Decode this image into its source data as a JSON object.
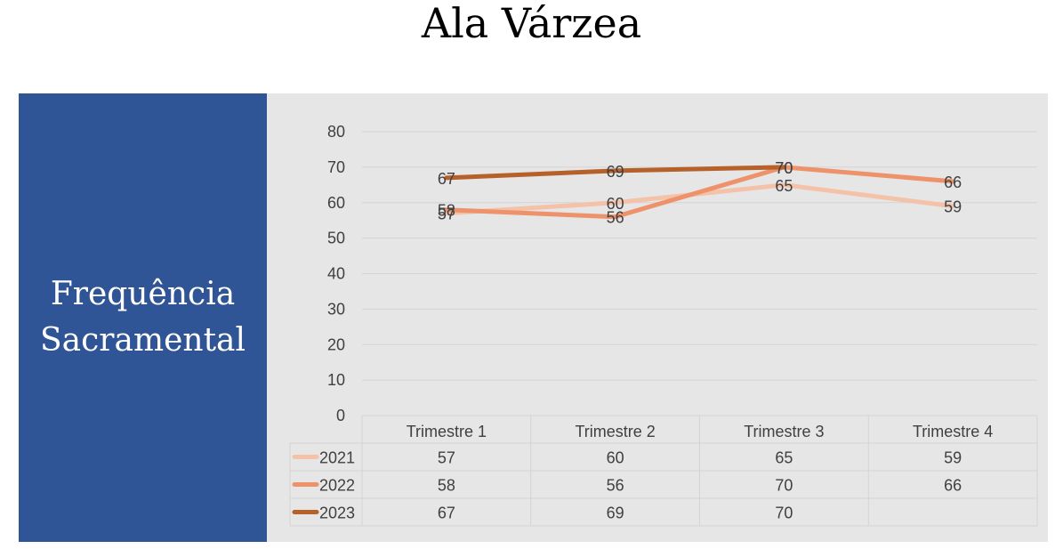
{
  "page": {
    "title": "Ala Várzea",
    "side_title": "Frequência Sacramental"
  },
  "colors": {
    "side_panel": "#2f5597",
    "chart_background": "#e6e6e6",
    "s2021": "#f4c2a8",
    "s2022": "#ed926a",
    "s2023": "#b6602a"
  },
  "chart_data": {
    "type": "line",
    "categories": [
      "Trimestre 1",
      "Trimestre 2",
      "Trimestre 3",
      "Trimestre 4"
    ],
    "series": [
      {
        "name": "2021",
        "values": [
          57,
          60,
          65,
          59
        ],
        "color": "#f4c2a8"
      },
      {
        "name": "2022",
        "values": [
          58,
          56,
          70,
          66
        ],
        "color": "#ed926a"
      },
      {
        "name": "2023",
        "values": [
          67,
          69,
          70,
          null
        ],
        "color": "#b6602a"
      }
    ],
    "ylim": [
      0,
      80
    ],
    "yticks": [
      0,
      10,
      20,
      30,
      40,
      50,
      60,
      70,
      80
    ],
    "grid": true,
    "data_labels": true,
    "legend": "data-table-below"
  }
}
